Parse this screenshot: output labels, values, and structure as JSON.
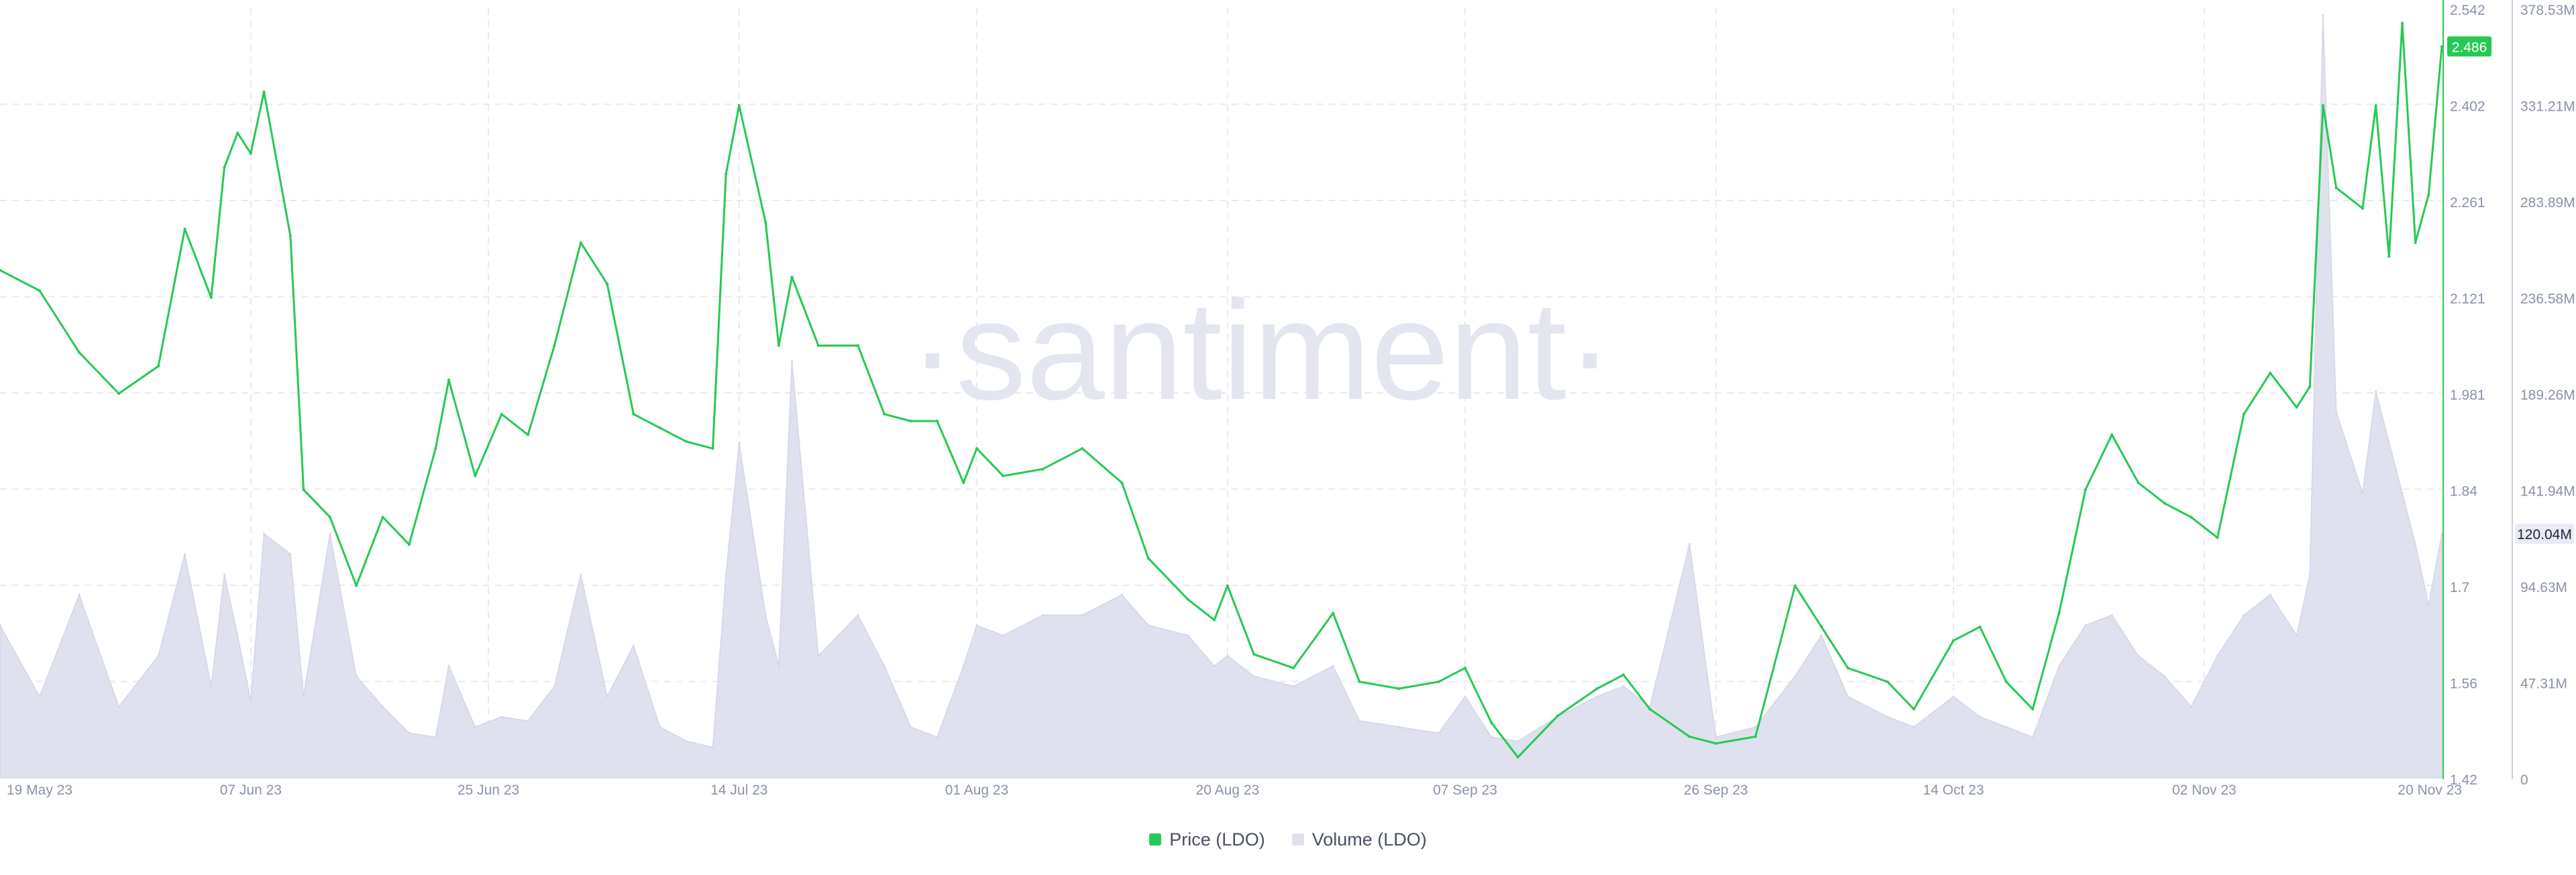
{
  "watermark": "·santiment·",
  "colors": {
    "price": "#26c953",
    "volume": "#dfe1ee",
    "grid": "#e8e9ef",
    "axis_text": "#8b92a8",
    "price_badge_bg": "#26c953",
    "volume_badge_bg": "#e8ebf3"
  },
  "legend": {
    "price_label": "Price (LDO)",
    "volume_label": "Volume (LDO)"
  },
  "chart_data": {
    "type": "line",
    "x_ticks": [
      "19 May 23",
      "07 Jun 23",
      "25 Jun 23",
      "14 Jul 23",
      "01 Aug 23",
      "20 Aug 23",
      "07 Sep 23",
      "26 Sep 23",
      "14 Oct 23",
      "02 Nov 23",
      "20 Nov 23"
    ],
    "price_axis": {
      "ticks": [
        "2.542",
        "2.402",
        "2.261",
        "2.121",
        "1.981",
        "1.84",
        "1.7",
        "1.56",
        "1.42"
      ],
      "range": [
        1.42,
        2.542
      ],
      "current_value_label": "2.486"
    },
    "volume_axis": {
      "ticks": [
        "378.53M",
        "331.21M",
        "283.89M",
        "236.58M",
        "189.26M",
        "141.94M",
        "94.63M",
        "47.31M",
        "0"
      ],
      "range": [
        0,
        378.53
      ],
      "current_value_label": "120.04M"
    },
    "grid": true,
    "legend_position": "bottom",
    "series": [
      {
        "name": "Price (LDO)",
        "axis": "left-price",
        "points": [
          [
            "19 May 23",
            2.16
          ],
          [
            "22 May 23",
            2.13
          ],
          [
            "25 May 23",
            2.04
          ],
          [
            "28 May 23",
            1.98
          ],
          [
            "31 May 23",
            2.02
          ],
          [
            "02 Jun 23",
            2.22
          ],
          [
            "04 Jun 23",
            2.12
          ],
          [
            "05 Jun 23",
            2.31
          ],
          [
            "06 Jun 23",
            2.36
          ],
          [
            "07 Jun 23",
            2.33
          ],
          [
            "08 Jun 23",
            2.42
          ],
          [
            "10 Jun 23",
            2.21
          ],
          [
            "11 Jun 23",
            1.84
          ],
          [
            "13 Jun 23",
            1.8
          ],
          [
            "15 Jun 23",
            1.7
          ],
          [
            "17 Jun 23",
            1.8
          ],
          [
            "19 Jun 23",
            1.76
          ],
          [
            "21 Jun 23",
            1.9
          ],
          [
            "22 Jun 23",
            2.0
          ],
          [
            "24 Jun 23",
            1.86
          ],
          [
            "26 Jun 23",
            1.95
          ],
          [
            "28 Jun 23",
            1.92
          ],
          [
            "30 Jun 23",
            2.05
          ],
          [
            "02 Jul 23",
            2.2
          ],
          [
            "04 Jul 23",
            2.14
          ],
          [
            "06 Jul 23",
            1.95
          ],
          [
            "08 Jul 23",
            1.93
          ],
          [
            "10 Jul 23",
            1.91
          ],
          [
            "12 Jul 23",
            1.9
          ],
          [
            "13 Jul 23",
            2.3
          ],
          [
            "14 Jul 23",
            2.4
          ],
          [
            "16 Jul 23",
            2.23
          ],
          [
            "17 Jul 23",
            2.05
          ],
          [
            "18 Jul 23",
            2.15
          ],
          [
            "20 Jul 23",
            2.05
          ],
          [
            "23 Jul 23",
            2.05
          ],
          [
            "25 Jul 23",
            1.95
          ],
          [
            "27 Jul 23",
            1.94
          ],
          [
            "29 Jul 23",
            1.94
          ],
          [
            "31 Jul 23",
            1.85
          ],
          [
            "01 Aug 23",
            1.9
          ],
          [
            "03 Aug 23",
            1.86
          ],
          [
            "06 Aug 23",
            1.87
          ],
          [
            "09 Aug 23",
            1.9
          ],
          [
            "12 Aug 23",
            1.85
          ],
          [
            "14 Aug 23",
            1.74
          ],
          [
            "17 Aug 23",
            1.68
          ],
          [
            "19 Aug 23",
            1.65
          ],
          [
            "20 Aug 23",
            1.7
          ],
          [
            "22 Aug 23",
            1.6
          ],
          [
            "25 Aug 23",
            1.58
          ],
          [
            "28 Aug 23",
            1.66
          ],
          [
            "30 Aug 23",
            1.56
          ],
          [
            "02 Sep 23",
            1.55
          ],
          [
            "05 Sep 23",
            1.56
          ],
          [
            "07 Sep 23",
            1.58
          ],
          [
            "09 Sep 23",
            1.5
          ],
          [
            "11 Sep 23",
            1.45
          ],
          [
            "14 Sep 23",
            1.51
          ],
          [
            "17 Sep 23",
            1.55
          ],
          [
            "19 Sep 23",
            1.57
          ],
          [
            "21 Sep 23",
            1.52
          ],
          [
            "24 Sep 23",
            1.48
          ],
          [
            "26 Sep 23",
            1.47
          ],
          [
            "29 Sep 23",
            1.48
          ],
          [
            "02 Oct 23",
            1.7
          ],
          [
            "04 Oct 23",
            1.64
          ],
          [
            "06 Oct 23",
            1.58
          ],
          [
            "09 Oct 23",
            1.56
          ],
          [
            "11 Oct 23",
            1.52
          ],
          [
            "14 Oct 23",
            1.62
          ],
          [
            "16 Oct 23",
            1.64
          ],
          [
            "18 Oct 23",
            1.56
          ],
          [
            "20 Oct 23",
            1.52
          ],
          [
            "22 Oct 23",
            1.66
          ],
          [
            "24 Oct 23",
            1.84
          ],
          [
            "26 Oct 23",
            1.92
          ],
          [
            "28 Oct 23",
            1.85
          ],
          [
            "30 Oct 23",
            1.82
          ],
          [
            "01 Nov 23",
            1.8
          ],
          [
            "03 Nov 23",
            1.77
          ],
          [
            "05 Nov 23",
            1.95
          ],
          [
            "07 Nov 23",
            2.01
          ],
          [
            "09 Nov 23",
            1.96
          ],
          [
            "10 Nov 23",
            1.99
          ],
          [
            "11 Nov 23",
            2.4
          ],
          [
            "12 Nov 23",
            2.28
          ],
          [
            "14 Nov 23",
            2.25
          ],
          [
            "15 Nov 23",
            2.4
          ],
          [
            "16 Nov 23",
            2.18
          ],
          [
            "17 Nov 23",
            2.52
          ],
          [
            "18 Nov 23",
            2.2
          ],
          [
            "19 Nov 23",
            2.27
          ],
          [
            "20 Nov 23",
            2.486
          ]
        ]
      },
      {
        "name": "Volume (LDO)",
        "axis": "right-volume",
        "points": [
          [
            "19 May 23",
            75
          ],
          [
            "22 May 23",
            40
          ],
          [
            "25 May 23",
            90
          ],
          [
            "28 May 23",
            35
          ],
          [
            "31 May 23",
            60
          ],
          [
            "02 Jun 23",
            110
          ],
          [
            "04 Jun 23",
            45
          ],
          [
            "05 Jun 23",
            100
          ],
          [
            "06 Jun 23",
            70
          ],
          [
            "07 Jun 23",
            38
          ],
          [
            "08 Jun 23",
            120
          ],
          [
            "10 Jun 23",
            110
          ],
          [
            "11 Jun 23",
            40
          ],
          [
            "13 Jun 23",
            120
          ],
          [
            "15 Jun 23",
            50
          ],
          [
            "17 Jun 23",
            35
          ],
          [
            "19 Jun 23",
            22
          ],
          [
            "21 Jun 23",
            20
          ],
          [
            "22 Jun 23",
            55
          ],
          [
            "24 Jun 23",
            25
          ],
          [
            "26 Jun 23",
            30
          ],
          [
            "28 Jun 23",
            28
          ],
          [
            "30 Jun 23",
            45
          ],
          [
            "02 Jul 23",
            100
          ],
          [
            "04 Jul 23",
            40
          ],
          [
            "06 Jul 23",
            65
          ],
          [
            "08 Jul 23",
            25
          ],
          [
            "10 Jul 23",
            18
          ],
          [
            "12 Jul 23",
            15
          ],
          [
            "13 Jul 23",
            100
          ],
          [
            "14 Jul 23",
            165
          ],
          [
            "16 Jul 23",
            80
          ],
          [
            "17 Jul 23",
            55
          ],
          [
            "18 Jul 23",
            205
          ],
          [
            "20 Jul 23",
            60
          ],
          [
            "23 Jul 23",
            80
          ],
          [
            "25 Jul 23",
            55
          ],
          [
            "27 Jul 23",
            25
          ],
          [
            "29 Jul 23",
            20
          ],
          [
            "31 Jul 23",
            55
          ],
          [
            "01 Aug 23",
            75
          ],
          [
            "03 Aug 23",
            70
          ],
          [
            "06 Aug 23",
            80
          ],
          [
            "09 Aug 23",
            80
          ],
          [
            "12 Aug 23",
            90
          ],
          [
            "14 Aug 23",
            75
          ],
          [
            "17 Aug 23",
            70
          ],
          [
            "19 Aug 23",
            55
          ],
          [
            "20 Aug 23",
            60
          ],
          [
            "22 Aug 23",
            50
          ],
          [
            "25 Aug 23",
            45
          ],
          [
            "28 Aug 23",
            55
          ],
          [
            "30 Aug 23",
            28
          ],
          [
            "02 Sep 23",
            25
          ],
          [
            "05 Sep 23",
            22
          ],
          [
            "07 Sep 23",
            40
          ],
          [
            "09 Sep 23",
            20
          ],
          [
            "11 Sep 23",
            18
          ],
          [
            "14 Sep 23",
            30
          ],
          [
            "17 Sep 23",
            40
          ],
          [
            "19 Sep 23",
            45
          ],
          [
            "21 Sep 23",
            35
          ],
          [
            "24 Sep 23",
            115
          ],
          [
            "26 Sep 23",
            20
          ],
          [
            "29 Sep 23",
            25
          ],
          [
            "02 Oct 23",
            50
          ],
          [
            "04 Oct 23",
            70
          ],
          [
            "06 Oct 23",
            40
          ],
          [
            "09 Oct 23",
            30
          ],
          [
            "11 Oct 23",
            25
          ],
          [
            "14 Oct 23",
            40
          ],
          [
            "16 Oct 23",
            30
          ],
          [
            "18 Oct 23",
            25
          ],
          [
            "20 Oct 23",
            20
          ],
          [
            "22 Oct 23",
            55
          ],
          [
            "24 Oct 23",
            75
          ],
          [
            "26 Oct 23",
            80
          ],
          [
            "28 Oct 23",
            60
          ],
          [
            "30 Oct 23",
            50
          ],
          [
            "01 Nov 23",
            35
          ],
          [
            "03 Nov 23",
            60
          ],
          [
            "05 Nov 23",
            80
          ],
          [
            "07 Nov 23",
            90
          ],
          [
            "09 Nov 23",
            70
          ],
          [
            "10 Nov 23",
            100
          ],
          [
            "11 Nov 23",
            375
          ],
          [
            "12 Nov 23",
            180
          ],
          [
            "14 Nov 23",
            140
          ],
          [
            "15 Nov 23",
            190
          ],
          [
            "16 Nov 23",
            165
          ],
          [
            "17 Nov 23",
            140
          ],
          [
            "18 Nov 23",
            115
          ],
          [
            "19 Nov 23",
            85
          ],
          [
            "20 Nov 23",
            120
          ]
        ]
      }
    ]
  }
}
